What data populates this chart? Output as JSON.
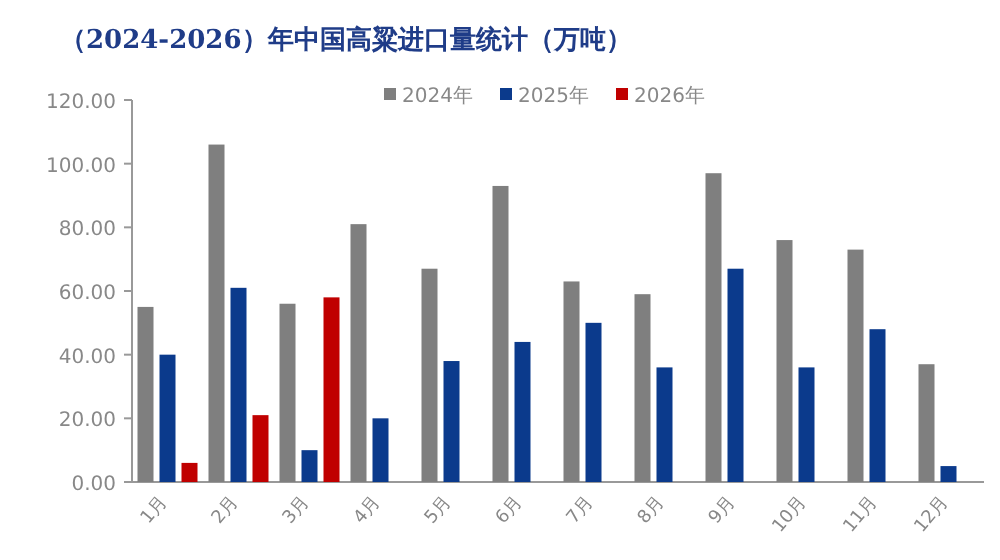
{
  "chart_data": {
    "type": "bar",
    "title": "（2024-2026）年中国高粱进口量统计（万吨）",
    "categories": [
      "1月",
      "2月",
      "3月",
      "4月",
      "5月",
      "6月",
      "7月",
      "8月",
      "9月",
      "10月",
      "11月",
      "12月"
    ],
    "series": [
      {
        "name": "2024年",
        "color": "#7f7f7f",
        "values": [
          55,
          106,
          56,
          81,
          67,
          93,
          63,
          59,
          97,
          76,
          73,
          37
        ]
      },
      {
        "name": "2025年",
        "color": "#0b3a8c",
        "values": [
          40,
          61,
          10,
          20,
          38,
          44,
          50,
          36,
          67,
          36,
          48,
          5
        ]
      },
      {
        "name": "2026年",
        "color": "#c00000",
        "values": [
          6,
          21,
          58,
          null,
          null,
          null,
          null,
          null,
          null,
          null,
          null,
          null
        ]
      }
    ],
    "ylim": [
      0,
      120
    ],
    "yticks": [
      {
        "value": 0,
        "label": "0.00"
      },
      {
        "value": 20,
        "label": "20.00"
      },
      {
        "value": 40,
        "label": "40.00"
      },
      {
        "value": 60,
        "label": "60.00"
      },
      {
        "value": 80,
        "label": "80.00"
      },
      {
        "value": 100,
        "label": "100.00"
      },
      {
        "value": 120,
        "label": "120.00"
      }
    ],
    "legend": "top",
    "grid": false
  }
}
